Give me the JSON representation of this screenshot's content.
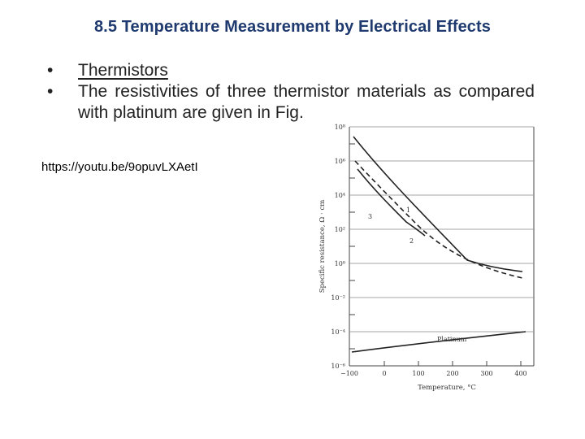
{
  "slide": {
    "title": "8.5 Temperature Measurement by Electrical Effects",
    "bullets": [
      {
        "marker": "•",
        "text": "Thermistors"
      },
      {
        "marker": "•",
        "text": "The resistivities of three thermistor materials as compared with platinum are given in Fig."
      }
    ],
    "link_text": "https://youtu.be/9opuvLXAetI"
  },
  "figure": {
    "ylabel": "Specific resistance, Ω · cm",
    "xlabel": "Temperature, °C",
    "y_ticks": [
      "10⁸",
      "10⁶",
      "10⁴",
      "10²",
      "10⁰",
      "10⁻²",
      "10⁻⁴",
      "10⁻⁶"
    ],
    "x_ticks": [
      "−100",
      "0",
      "100",
      "200",
      "300",
      "400"
    ],
    "curve_labels": [
      "1",
      "2",
      "3"
    ],
    "platinum_label": "Platinum",
    "colors": {
      "curve": "#222222",
      "grid": "#666666",
      "title": "#1f3a6e"
    }
  }
}
